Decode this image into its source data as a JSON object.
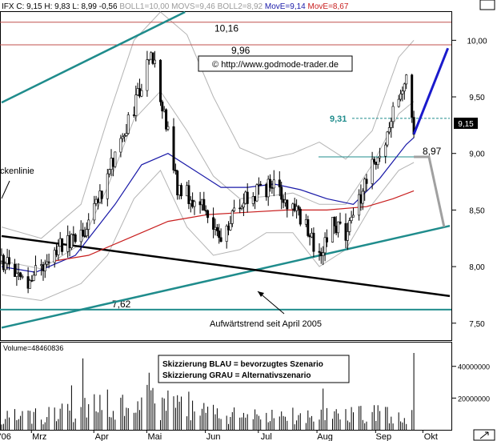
{
  "chart_data": {
    "type": "candlestick",
    "header": {
      "symbol": "IFX",
      "close_label": "C: 9,15",
      "high_label": "H: 9,83",
      "low_label": "L: 8,99",
      "change_label": "-0,56",
      "indicators": [
        {
          "text": "BOLL1=10,00",
          "color": "#9a9a9a"
        },
        {
          "text": "MOVS=9,46",
          "color": "#9a9a9a"
        },
        {
          "text": "BOLL2=8,92",
          "color": "#9a9a9a"
        },
        {
          "text": "MovE=9,14",
          "color": "#1a1aa8"
        },
        {
          "text": "MovE=8,67",
          "color": "#c81e1e"
        }
      ]
    },
    "watermark": "© http://www.godmode-trader.de",
    "price_axis": {
      "min": 7.35,
      "max": 10.25,
      "ticks": [
        7.5,
        8.0,
        8.5,
        9.0,
        9.5,
        10.0
      ],
      "tick_labels": [
        "7,50",
        "8,00",
        "8,50",
        "9,00",
        "9,50",
        "10,00"
      ]
    },
    "volume_axis": {
      "min": 0,
      "max": 55000000,
      "ticks": [
        20000000,
        40000000
      ],
      "tick_labels": [
        "20000000",
        "40000000"
      ],
      "label": "Volume=48460836",
      "last_volume": 48460836
    },
    "x_axis": {
      "labels": [
        "'06",
        "Mrz",
        "Apr",
        "Mai",
        "Jun",
        "Jul",
        "Aug",
        "Sep",
        "Okt"
      ],
      "start": "2006-02-20",
      "end": "2006-10-15"
    },
    "last_price_badge": "9,15",
    "levels": [
      {
        "value": 10.16,
        "label": "10,16",
        "color": "#c0504d"
      },
      {
        "value": 9.96,
        "label": "9,96",
        "color": "#c0504d"
      },
      {
        "value": 8.97,
        "label": "8,97",
        "color": "#1f8c8c"
      },
      {
        "value": 9.31,
        "label": "9,31",
        "color": "#1f8c8c"
      },
      {
        "value": 7.62,
        "label": "7,62",
        "color": "#1f8c8c"
      }
    ],
    "trendlines": [
      {
        "name": "upper-channel",
        "color": "#1f8c8c",
        "from": [
          "2006-02-20",
          9.45
        ],
        "to": [
          "2006-05-28",
          10.25
        ]
      },
      {
        "name": "uptrend-april-2005",
        "color": "#1f8c8c",
        "from": [
          "2006-02-20",
          7.46
        ],
        "to": [
          "2006-10-15",
          8.36
        ]
      },
      {
        "name": "support-black",
        "color": "#000000",
        "from": [
          "2006-02-20",
          8.27
        ],
        "to": [
          "2006-10-15",
          7.74
        ]
      }
    ],
    "annotations": [
      {
        "text": "Aufwärtstrend seit April 2005"
      },
      {
        "text": "ckenlinie"
      }
    ],
    "legend": [
      {
        "text": "Skizzierung BLAU = bevorzugtes Szenario"
      },
      {
        "text": "Skizzierung GRAU = Alternativszenario"
      }
    ],
    "scenarios": [
      {
        "name": "blau",
        "color": "#1a1acc",
        "from": [
          "2006-09-26",
          9.17
        ],
        "to": [
          "2006-10-14",
          9.93
        ]
      },
      {
        "name": "grau",
        "color": "#a0a0a0",
        "points": [
          [
            "2006-09-26",
            8.97
          ],
          [
            "2006-10-04",
            8.97
          ],
          [
            "2006-10-12",
            8.35
          ]
        ]
      }
    ],
    "moving_averages": [
      {
        "name": "MovE=9,14",
        "color": "#1a1aa8",
        "points": [
          [
            "2006-02-20",
            8.0
          ],
          [
            "2006-03-10",
            7.95
          ],
          [
            "2006-03-31",
            8.1
          ],
          [
            "2006-04-21",
            8.55
          ],
          [
            "2006-05-05",
            8.9
          ],
          [
            "2006-05-19",
            9.0
          ],
          [
            "2006-06-02",
            8.85
          ],
          [
            "2006-06-16",
            8.7
          ],
          [
            "2006-06-30",
            8.7
          ],
          [
            "2006-07-14",
            8.73
          ],
          [
            "2006-07-28",
            8.68
          ],
          [
            "2006-08-11",
            8.6
          ],
          [
            "2006-08-25",
            8.55
          ],
          [
            "2006-09-08",
            8.78
          ],
          [
            "2006-09-22",
            9.08
          ],
          [
            "2006-09-26",
            9.14
          ]
        ]
      },
      {
        "name": "MovE=8,67",
        "color": "#c81e1e",
        "points": [
          [
            "2006-03-20",
            8.05
          ],
          [
            "2006-04-07",
            8.1
          ],
          [
            "2006-04-28",
            8.25
          ],
          [
            "2006-05-19",
            8.4
          ],
          [
            "2006-06-09",
            8.46
          ],
          [
            "2006-06-30",
            8.48
          ],
          [
            "2006-07-21",
            8.5
          ],
          [
            "2006-08-11",
            8.5
          ],
          [
            "2006-09-01",
            8.53
          ],
          [
            "2006-09-15",
            8.6
          ],
          [
            "2006-09-26",
            8.67
          ]
        ]
      }
    ],
    "bollinger": [
      {
        "name": "BOLL1=10,00",
        "color": "#b4b4b4",
        "points": [
          [
            "2006-02-20",
            8.35
          ],
          [
            "2006-03-13",
            8.25
          ],
          [
            "2006-04-03",
            8.55
          ],
          [
            "2006-04-17",
            9.3
          ],
          [
            "2006-05-01",
            10.0
          ],
          [
            "2006-05-15",
            10.25
          ],
          [
            "2006-05-29",
            10.05
          ],
          [
            "2006-06-12",
            9.5
          ],
          [
            "2006-06-26",
            9.05
          ],
          [
            "2006-07-10",
            8.95
          ],
          [
            "2006-07-24",
            9.0
          ],
          [
            "2006-08-07",
            9.1
          ],
          [
            "2006-08-21",
            8.95
          ],
          [
            "2006-09-04",
            9.2
          ],
          [
            "2006-09-18",
            9.85
          ],
          [
            "2006-09-26",
            10.0
          ]
        ]
      },
      {
        "name": "MOVS=9,46",
        "color": "#b4b4b4",
        "points": [
          [
            "2006-02-20",
            8.05
          ],
          [
            "2006-03-13",
            7.98
          ],
          [
            "2006-04-03",
            8.2
          ],
          [
            "2006-04-17",
            8.7
          ],
          [
            "2006-05-01",
            9.3
          ],
          [
            "2006-05-15",
            9.55
          ],
          [
            "2006-05-29",
            9.2
          ],
          [
            "2006-06-12",
            8.8
          ],
          [
            "2006-06-26",
            8.6
          ],
          [
            "2006-07-10",
            8.62
          ],
          [
            "2006-07-24",
            8.65
          ],
          [
            "2006-08-07",
            8.55
          ],
          [
            "2006-08-21",
            8.55
          ],
          [
            "2006-09-04",
            8.9
          ],
          [
            "2006-09-18",
            9.35
          ],
          [
            "2006-09-26",
            9.46
          ]
        ]
      },
      {
        "name": "BOLL2=8,92",
        "color": "#b4b4b4",
        "points": [
          [
            "2006-02-20",
            7.75
          ],
          [
            "2006-03-13",
            7.7
          ],
          [
            "2006-04-03",
            7.85
          ],
          [
            "2006-04-17",
            8.1
          ],
          [
            "2006-05-01",
            8.6
          ],
          [
            "2006-05-15",
            8.85
          ],
          [
            "2006-05-29",
            8.35
          ],
          [
            "2006-06-12",
            8.1
          ],
          [
            "2006-06-26",
            8.15
          ],
          [
            "2006-07-10",
            8.3
          ],
          [
            "2006-07-24",
            8.3
          ],
          [
            "2006-08-07",
            8.0
          ],
          [
            "2006-08-21",
            8.15
          ],
          [
            "2006-09-04",
            8.55
          ],
          [
            "2006-09-18",
            8.85
          ],
          [
            "2006-09-26",
            8.92
          ]
        ]
      }
    ],
    "price_path": [
      [
        "2006-02-20",
        8.05
      ],
      [
        "2006-03-06",
        7.85
      ],
      [
        "2006-03-20",
        8.15
      ],
      [
        "2006-04-07",
        8.35
      ],
      [
        "2006-04-24",
        9.1
      ],
      [
        "2006-05-04",
        9.55
      ],
      [
        "2006-05-10",
        9.95
      ],
      [
        "2006-05-16",
        9.45
      ],
      [
        "2006-05-24",
        8.7
      ],
      [
        "2006-06-05",
        8.55
      ],
      [
        "2006-06-15",
        8.25
      ],
      [
        "2006-06-28",
        8.6
      ],
      [
        "2006-07-14",
        8.72
      ],
      [
        "2006-07-28",
        8.45
      ],
      [
        "2006-08-07",
        8.1
      ],
      [
        "2006-08-14",
        8.4
      ],
      [
        "2006-08-21",
        8.3
      ],
      [
        "2006-09-01",
        8.75
      ],
      [
        "2006-09-11",
        9.15
      ],
      [
        "2006-09-18",
        9.55
      ],
      [
        "2006-09-22",
        9.7
      ],
      [
        "2006-09-26",
        9.15
      ]
    ],
    "volume_profile": [
      [
        "2006-02-20",
        7000000
      ],
      [
        "2006-03-20",
        9000000
      ],
      [
        "2006-04-10",
        14000000
      ],
      [
        "2006-05-10",
        16000000
      ],
      [
        "2006-06-10",
        9000000
      ],
      [
        "2006-07-10",
        7000000
      ],
      [
        "2006-08-10",
        9000000
      ],
      [
        "2006-09-10",
        9000000
      ],
      [
        "2006-09-26",
        8000000
      ]
    ],
    "volume_spikes": [
      [
        "2006-04-04",
        45000000
      ],
      [
        "2006-05-09",
        36000000
      ],
      [
        "2006-05-30",
        24000000
      ],
      [
        "2006-08-09",
        26000000
      ],
      [
        "2006-03-29",
        28000000
      ]
    ]
  }
}
